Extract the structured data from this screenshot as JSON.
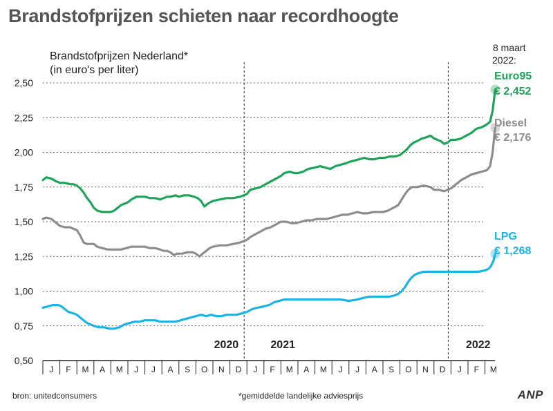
{
  "headline": "Brandstofprijzen schieten naar recordhoogte",
  "source": "bron: unitedconsumers",
  "footnote": "*gemiddelde landelijke adviesprijs",
  "logo": "ANP",
  "colors": {
    "euro95": "#1fa35a",
    "diesel": "#8c8c8c",
    "lpg": "#1ab3e6",
    "axis": "#222222"
  },
  "chart_data": {
    "type": "line",
    "title": "Brandstofprijzen Nederland*",
    "subtitle": "(in euro's per liter)",
    "date_note": [
      "8 maart",
      "2022:"
    ],
    "ylim": [
      0.5,
      2.5
    ],
    "yticks": [
      0.5,
      0.75,
      1.0,
      1.25,
      1.5,
      1.75,
      2.0,
      2.25,
      2.5
    ],
    "ytick_labels": [
      "0,50",
      "0,75",
      "1,00",
      "1,25",
      "1,50",
      "1,75",
      "2,00",
      "2,25",
      "2,50"
    ],
    "grid": true,
    "x_month_labels": [
      "J",
      "F",
      "M",
      "A",
      "M",
      "J",
      "J",
      "A",
      "S",
      "O",
      "N",
      "D",
      "J",
      "F",
      "M",
      "A",
      "M",
      "J",
      "J",
      "A",
      "S",
      "O",
      "N",
      "D",
      "J",
      "F",
      "M"
    ],
    "year_labels": [
      "2020",
      "2021",
      "2022"
    ],
    "year_starts": [
      0,
      12,
      24
    ],
    "series": [
      {
        "name": "Euro95",
        "final_label": "€ 2,452",
        "final_value": 2.452,
        "points": [
          [
            0,
            1.8
          ],
          [
            0.2,
            1.82
          ],
          [
            0.5,
            1.81
          ],
          [
            0.8,
            1.79
          ],
          [
            1.0,
            1.78
          ],
          [
            1.3,
            1.78
          ],
          [
            1.6,
            1.77
          ],
          [
            1.8,
            1.77
          ],
          [
            2.0,
            1.76
          ],
          [
            2.2,
            1.74
          ],
          [
            2.4,
            1.71
          ],
          [
            2.6,
            1.67
          ],
          [
            2.8,
            1.64
          ],
          [
            3.0,
            1.6
          ],
          [
            3.2,
            1.58
          ],
          [
            3.5,
            1.57
          ],
          [
            3.8,
            1.57
          ],
          [
            4.0,
            1.57
          ],
          [
            4.2,
            1.58
          ],
          [
            4.4,
            1.6
          ],
          [
            4.6,
            1.62
          ],
          [
            4.8,
            1.63
          ],
          [
            5.0,
            1.64
          ],
          [
            5.2,
            1.66
          ],
          [
            5.5,
            1.68
          ],
          [
            5.8,
            1.68
          ],
          [
            6.0,
            1.68
          ],
          [
            6.3,
            1.67
          ],
          [
            6.6,
            1.67
          ],
          [
            6.9,
            1.66
          ],
          [
            7.1,
            1.67
          ],
          [
            7.3,
            1.68
          ],
          [
            7.5,
            1.68
          ],
          [
            7.8,
            1.69
          ],
          [
            8.0,
            1.68
          ],
          [
            8.3,
            1.69
          ],
          [
            8.6,
            1.69
          ],
          [
            8.9,
            1.68
          ],
          [
            9.1,
            1.67
          ],
          [
            9.3,
            1.65
          ],
          [
            9.5,
            1.61
          ],
          [
            9.7,
            1.63
          ],
          [
            10.0,
            1.65
          ],
          [
            10.4,
            1.66
          ],
          [
            10.8,
            1.67
          ],
          [
            11.2,
            1.67
          ],
          [
            11.6,
            1.68
          ],
          [
            12.0,
            1.7
          ],
          [
            12.2,
            1.73
          ],
          [
            12.5,
            1.74
          ],
          [
            12.8,
            1.75
          ],
          [
            13.1,
            1.77
          ],
          [
            13.4,
            1.79
          ],
          [
            13.7,
            1.81
          ],
          [
            14.0,
            1.83
          ],
          [
            14.2,
            1.85
          ],
          [
            14.5,
            1.86
          ],
          [
            14.8,
            1.85
          ],
          [
            15.0,
            1.85
          ],
          [
            15.3,
            1.86
          ],
          [
            15.6,
            1.88
          ],
          [
            16.0,
            1.89
          ],
          [
            16.3,
            1.9
          ],
          [
            16.6,
            1.89
          ],
          [
            16.9,
            1.88
          ],
          [
            17.2,
            1.9
          ],
          [
            17.5,
            1.91
          ],
          [
            17.8,
            1.92
          ],
          [
            18.0,
            1.93
          ],
          [
            18.3,
            1.94
          ],
          [
            18.6,
            1.95
          ],
          [
            18.9,
            1.96
          ],
          [
            19.2,
            1.95
          ],
          [
            19.5,
            1.95
          ],
          [
            19.8,
            1.96
          ],
          [
            20.1,
            1.96
          ],
          [
            20.4,
            1.97
          ],
          [
            20.7,
            1.97
          ],
          [
            21.0,
            1.98
          ],
          [
            21.2,
            2.0
          ],
          [
            21.4,
            2.02
          ],
          [
            21.6,
            2.05
          ],
          [
            21.8,
            2.07
          ],
          [
            22.0,
            2.08
          ],
          [
            22.3,
            2.1
          ],
          [
            22.6,
            2.11
          ],
          [
            22.8,
            2.12
          ],
          [
            23.0,
            2.1
          ],
          [
            23.2,
            2.09
          ],
          [
            23.4,
            2.08
          ],
          [
            23.6,
            2.06
          ],
          [
            23.8,
            2.07
          ],
          [
            24.0,
            2.09
          ],
          [
            24.3,
            2.09
          ],
          [
            24.6,
            2.1
          ],
          [
            24.9,
            2.12
          ],
          [
            25.2,
            2.14
          ],
          [
            25.5,
            2.17
          ],
          [
            25.8,
            2.18
          ],
          [
            26.1,
            2.2
          ],
          [
            26.3,
            2.22
          ],
          [
            26.45,
            2.3
          ],
          [
            26.55,
            2.4
          ],
          [
            26.6,
            2.452
          ]
        ]
      },
      {
        "name": "Diesel",
        "final_label": "€ 2,176",
        "final_value": 2.176,
        "points": [
          [
            0,
            1.52
          ],
          [
            0.2,
            1.53
          ],
          [
            0.5,
            1.52
          ],
          [
            0.8,
            1.49
          ],
          [
            1.0,
            1.47
          ],
          [
            1.3,
            1.46
          ],
          [
            1.6,
            1.46
          ],
          [
            1.8,
            1.45
          ],
          [
            2.0,
            1.44
          ],
          [
            2.2,
            1.4
          ],
          [
            2.4,
            1.35
          ],
          [
            2.6,
            1.34
          ],
          [
            2.8,
            1.34
          ],
          [
            3.0,
            1.34
          ],
          [
            3.2,
            1.32
          ],
          [
            3.5,
            1.31
          ],
          [
            3.8,
            1.3
          ],
          [
            4.0,
            1.3
          ],
          [
            4.3,
            1.3
          ],
          [
            4.6,
            1.3
          ],
          [
            4.9,
            1.31
          ],
          [
            5.2,
            1.32
          ],
          [
            5.5,
            1.32
          ],
          [
            5.8,
            1.32
          ],
          [
            6.0,
            1.32
          ],
          [
            6.3,
            1.31
          ],
          [
            6.6,
            1.31
          ],
          [
            6.9,
            1.3
          ],
          [
            7.1,
            1.29
          ],
          [
            7.3,
            1.29
          ],
          [
            7.5,
            1.28
          ],
          [
            7.7,
            1.26
          ],
          [
            7.9,
            1.27
          ],
          [
            8.2,
            1.27
          ],
          [
            8.5,
            1.28
          ],
          [
            8.8,
            1.28
          ],
          [
            9.0,
            1.27
          ],
          [
            9.2,
            1.25
          ],
          [
            9.4,
            1.27
          ],
          [
            9.6,
            1.29
          ],
          [
            9.8,
            1.31
          ],
          [
            10.0,
            1.32
          ],
          [
            10.4,
            1.33
          ],
          [
            10.8,
            1.33
          ],
          [
            11.2,
            1.34
          ],
          [
            11.6,
            1.35
          ],
          [
            12.0,
            1.37
          ],
          [
            12.2,
            1.39
          ],
          [
            12.5,
            1.41
          ],
          [
            12.8,
            1.43
          ],
          [
            13.1,
            1.45
          ],
          [
            13.4,
            1.46
          ],
          [
            13.7,
            1.48
          ],
          [
            14.0,
            1.5
          ],
          [
            14.3,
            1.5
          ],
          [
            14.6,
            1.49
          ],
          [
            14.9,
            1.49
          ],
          [
            15.2,
            1.5
          ],
          [
            15.5,
            1.51
          ],
          [
            15.8,
            1.51
          ],
          [
            16.1,
            1.52
          ],
          [
            16.4,
            1.52
          ],
          [
            16.7,
            1.52
          ],
          [
            17.0,
            1.53
          ],
          [
            17.3,
            1.54
          ],
          [
            17.6,
            1.55
          ],
          [
            17.9,
            1.55
          ],
          [
            18.2,
            1.56
          ],
          [
            18.5,
            1.57
          ],
          [
            18.8,
            1.56
          ],
          [
            19.1,
            1.56
          ],
          [
            19.4,
            1.57
          ],
          [
            19.7,
            1.57
          ],
          [
            20.0,
            1.57
          ],
          [
            20.3,
            1.58
          ],
          [
            20.6,
            1.6
          ],
          [
            20.9,
            1.62
          ],
          [
            21.1,
            1.66
          ],
          [
            21.3,
            1.7
          ],
          [
            21.5,
            1.73
          ],
          [
            21.7,
            1.75
          ],
          [
            22.0,
            1.75
          ],
          [
            22.4,
            1.76
          ],
          [
            22.8,
            1.75
          ],
          [
            23.0,
            1.73
          ],
          [
            23.3,
            1.73
          ],
          [
            23.6,
            1.72
          ],
          [
            23.8,
            1.73
          ],
          [
            24.0,
            1.74
          ],
          [
            24.3,
            1.77
          ],
          [
            24.6,
            1.8
          ],
          [
            24.9,
            1.82
          ],
          [
            25.2,
            1.84
          ],
          [
            25.5,
            1.85
          ],
          [
            25.8,
            1.86
          ],
          [
            26.1,
            1.87
          ],
          [
            26.3,
            1.9
          ],
          [
            26.45,
            2.0
          ],
          [
            26.55,
            2.12
          ],
          [
            26.6,
            2.176
          ]
        ]
      },
      {
        "name": "LPG",
        "final_label": "€ 1,268",
        "final_value": 1.268,
        "points": [
          [
            0,
            0.88
          ],
          [
            0.3,
            0.89
          ],
          [
            0.6,
            0.9
          ],
          [
            0.9,
            0.9
          ],
          [
            1.1,
            0.89
          ],
          [
            1.3,
            0.87
          ],
          [
            1.5,
            0.85
          ],
          [
            1.8,
            0.84
          ],
          [
            2.0,
            0.83
          ],
          [
            2.2,
            0.81
          ],
          [
            2.4,
            0.79
          ],
          [
            2.6,
            0.77
          ],
          [
            2.8,
            0.76
          ],
          [
            3.0,
            0.75
          ],
          [
            3.3,
            0.74
          ],
          [
            3.6,
            0.74
          ],
          [
            3.9,
            0.73
          ],
          [
            4.2,
            0.73
          ],
          [
            4.5,
            0.74
          ],
          [
            4.8,
            0.76
          ],
          [
            5.1,
            0.77
          ],
          [
            5.4,
            0.78
          ],
          [
            5.7,
            0.78
          ],
          [
            6.0,
            0.79
          ],
          [
            6.3,
            0.79
          ],
          [
            6.6,
            0.79
          ],
          [
            6.9,
            0.78
          ],
          [
            7.2,
            0.78
          ],
          [
            7.5,
            0.78
          ],
          [
            7.8,
            0.78
          ],
          [
            8.1,
            0.79
          ],
          [
            8.4,
            0.8
          ],
          [
            8.7,
            0.81
          ],
          [
            9.0,
            0.82
          ],
          [
            9.3,
            0.83
          ],
          [
            9.6,
            0.82
          ],
          [
            9.9,
            0.83
          ],
          [
            10.2,
            0.82
          ],
          [
            10.5,
            0.82
          ],
          [
            10.8,
            0.83
          ],
          [
            11.1,
            0.83
          ],
          [
            11.4,
            0.83
          ],
          [
            11.7,
            0.84
          ],
          [
            12.0,
            0.85
          ],
          [
            12.3,
            0.87
          ],
          [
            12.6,
            0.88
          ],
          [
            13.0,
            0.89
          ],
          [
            13.3,
            0.9
          ],
          [
            13.6,
            0.92
          ],
          [
            13.9,
            0.93
          ],
          [
            14.2,
            0.94
          ],
          [
            14.6,
            0.94
          ],
          [
            15.0,
            0.94
          ],
          [
            15.5,
            0.94
          ],
          [
            16.0,
            0.94
          ],
          [
            16.5,
            0.94
          ],
          [
            17.0,
            0.94
          ],
          [
            17.5,
            0.94
          ],
          [
            18.0,
            0.93
          ],
          [
            18.5,
            0.94
          ],
          [
            18.8,
            0.95
          ],
          [
            19.2,
            0.96
          ],
          [
            19.6,
            0.96
          ],
          [
            20.0,
            0.96
          ],
          [
            20.4,
            0.96
          ],
          [
            20.7,
            0.97
          ],
          [
            20.9,
            0.98
          ],
          [
            21.1,
            1.0
          ],
          [
            21.3,
            1.03
          ],
          [
            21.5,
            1.07
          ],
          [
            21.7,
            1.1
          ],
          [
            21.9,
            1.12
          ],
          [
            22.1,
            1.13
          ],
          [
            22.4,
            1.14
          ],
          [
            22.8,
            1.14
          ],
          [
            23.2,
            1.14
          ],
          [
            23.6,
            1.14
          ],
          [
            24.0,
            1.14
          ],
          [
            24.4,
            1.14
          ],
          [
            24.8,
            1.14
          ],
          [
            25.2,
            1.14
          ],
          [
            25.6,
            1.14
          ],
          [
            26.0,
            1.15
          ],
          [
            26.2,
            1.16
          ],
          [
            26.35,
            1.18
          ],
          [
            26.5,
            1.22
          ],
          [
            26.6,
            1.268
          ]
        ]
      }
    ]
  }
}
